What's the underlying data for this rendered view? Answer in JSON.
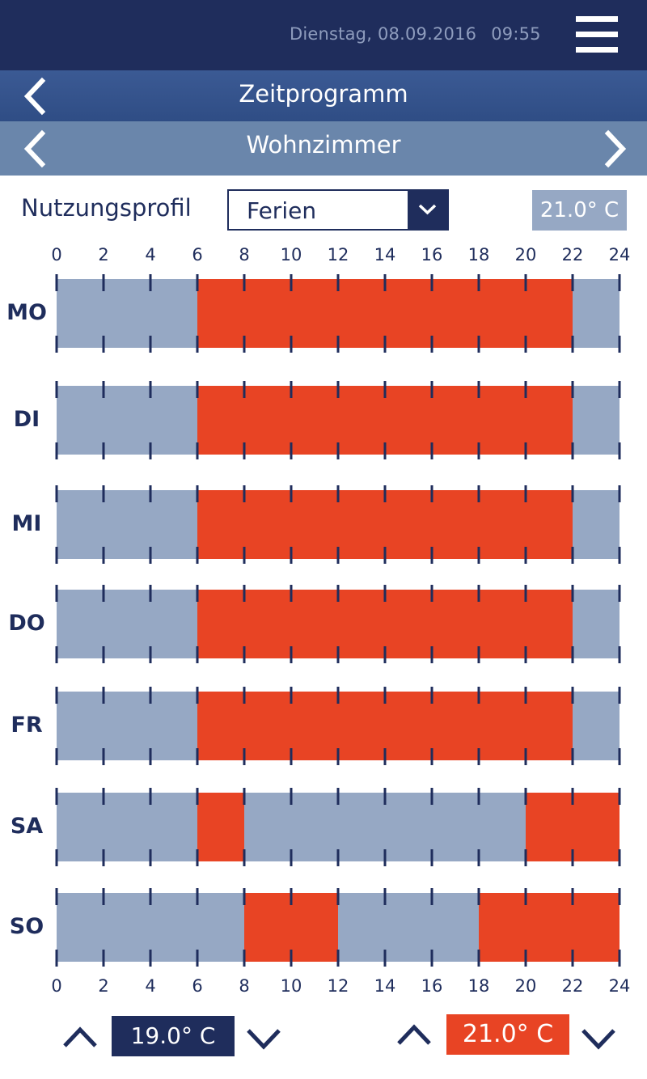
{
  "header": {
    "date": "Dienstag, 08.09.2016",
    "time": "09:55",
    "menu_icon": "hamburger-icon"
  },
  "nav": {
    "title": "Zeitprogramm",
    "room": "Wohnzimmer",
    "back_icon": "chevron-left-icon",
    "prev_icon": "chevron-left-icon",
    "next_icon": "chevron-right-icon"
  },
  "profile": {
    "label": "Nutzungsprofil",
    "selected": "Ferien",
    "dropdown_icon": "chevron-down-icon",
    "current_temp": "21.0° C"
  },
  "colors": {
    "dark_blue": "#1f2d5c",
    "comfort": "#e84424",
    "eco": "#96a8c4"
  },
  "schedule": {
    "hours_top": [
      "0",
      "2",
      "4",
      "6",
      "8",
      "10",
      "12",
      "14",
      "16",
      "18",
      "20",
      "22",
      "24"
    ],
    "hours_bottom": [
      "0",
      "2",
      "4",
      "6",
      "8",
      "10",
      "12",
      "14",
      "16",
      "18",
      "20",
      "22",
      "24"
    ],
    "days": [
      {
        "label": "MO",
        "comfort": [
          [
            6,
            22
          ]
        ]
      },
      {
        "label": "DI",
        "comfort": [
          [
            6,
            22
          ]
        ]
      },
      {
        "label": "MI",
        "comfort": [
          [
            6,
            22
          ]
        ]
      },
      {
        "label": "DO",
        "comfort": [
          [
            6,
            22
          ]
        ]
      },
      {
        "label": "FR",
        "comfort": [
          [
            6,
            22
          ]
        ]
      },
      {
        "label": "SA",
        "comfort": [
          [
            6,
            8
          ],
          [
            20,
            24
          ]
        ]
      },
      {
        "label": "SO",
        "comfort": [
          [
            8,
            12
          ],
          [
            18,
            24
          ]
        ]
      }
    ]
  },
  "footer": {
    "eco_temp": "19.0° C",
    "comfort_temp": "21.0° C",
    "up_icon": "chevron-up-icon",
    "down_icon": "chevron-down-icon"
  }
}
